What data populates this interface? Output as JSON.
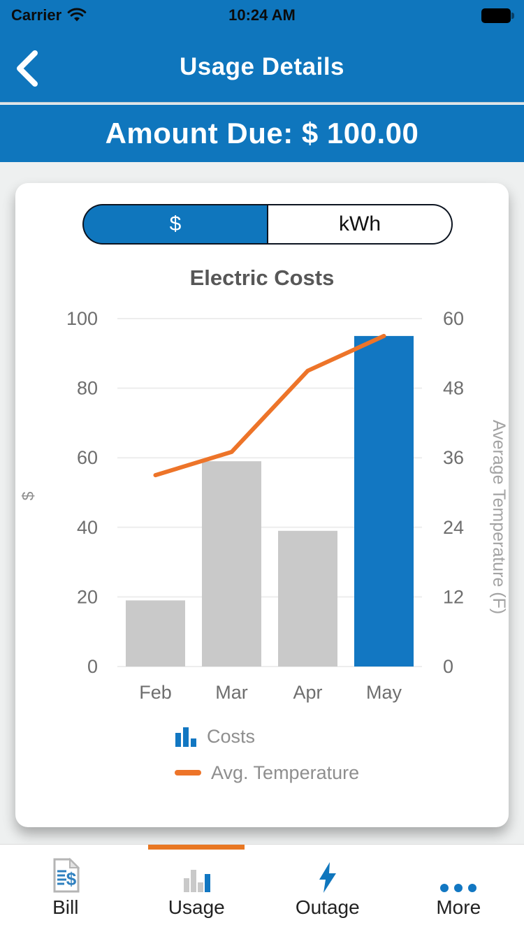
{
  "status_bar": {
    "carrier": "Carrier",
    "time": "10:24 AM",
    "battery_level": "full"
  },
  "nav": {
    "title": "Usage Details"
  },
  "banner": {
    "amount_due": "Amount Due: $ 100.00"
  },
  "toggle": {
    "dollar_label": "$",
    "kwh_label": "kWh",
    "selected": "$"
  },
  "chart_data": {
    "type": "bar",
    "combo": "bar+line",
    "title": "Electric Costs",
    "categories": [
      "Feb",
      "Mar",
      "Apr",
      "May"
    ],
    "series": [
      {
        "name": "Costs",
        "type": "bar",
        "axis": "left",
        "values": [
          19,
          59,
          39,
          95
        ],
        "color": "#c9c9c9",
        "highlight_index": 3,
        "highlight_color": "#1277c2"
      },
      {
        "name": "Avg. Temperature",
        "type": "line",
        "axis": "right",
        "values": [
          33,
          37,
          51,
          57
        ],
        "color": "#ed7429"
      }
    ],
    "left_axis": {
      "label": "$",
      "ticks": [
        0,
        20,
        40,
        60,
        80,
        100
      ],
      "range": [
        0,
        100
      ]
    },
    "right_axis": {
      "label": "Average Temperature (F)",
      "ticks": [
        0,
        12,
        24,
        36,
        48,
        60
      ],
      "range": [
        0,
        60
      ]
    },
    "grid": true,
    "legend_position": "bottom-left"
  },
  "tabbar": {
    "active": "Usage",
    "items": [
      {
        "label": "Bill",
        "icon": "bill-document-icon"
      },
      {
        "label": "Usage",
        "icon": "bar-chart-icon"
      },
      {
        "label": "Outage",
        "icon": "lightning-bolt-icon"
      },
      {
        "label": "More",
        "icon": "ellipsis-icon"
      }
    ]
  },
  "colors": {
    "accent_blue": "#0f76bd",
    "chart_bar_blue": "#1277c2",
    "bar_gray": "#c9c9c9",
    "line_orange": "#ed7429",
    "indicator_orange": "#e87722"
  }
}
